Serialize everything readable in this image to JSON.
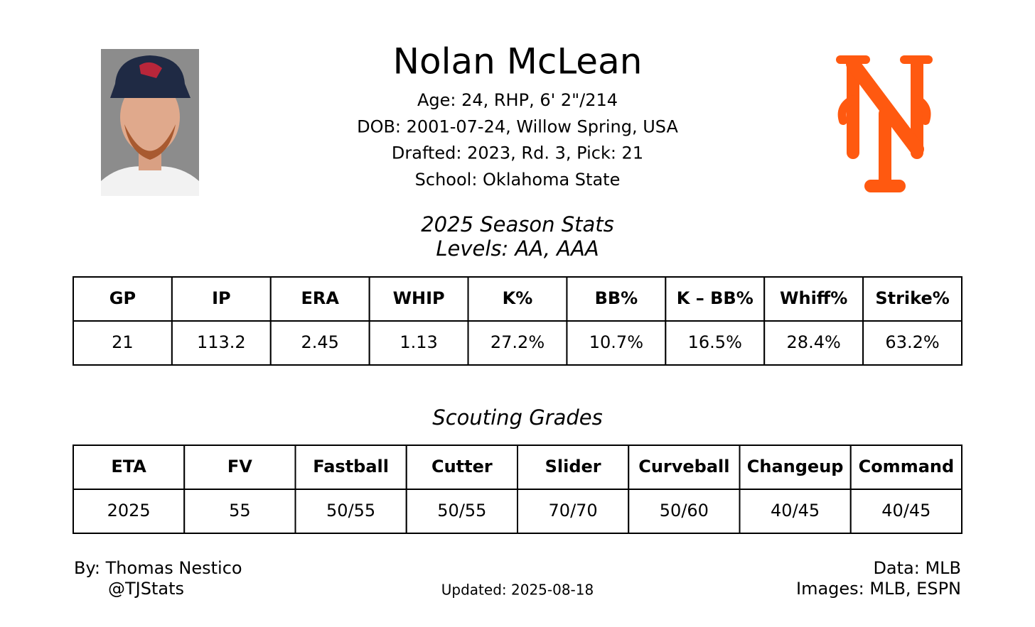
{
  "header": {
    "name": "Nolan McLean",
    "info": [
      "Age: 24, RHP, 6' 2\"/214",
      "DOB: 2001-07-24, Willow Spring, USA",
      "Drafted: 2023, Rd. 3, Pick: 21",
      "School: Oklahoma State"
    ]
  },
  "stats": {
    "title": "2025 Season Stats",
    "subtitle": "Levels: AA, AAA",
    "table": {
      "headers": [
        "GP",
        "IP",
        "ERA",
        "WHIP",
        "K%",
        "BB%",
        "K – BB%",
        "Whiff%",
        "Strike%"
      ],
      "rows": [
        [
          "21",
          "113.2",
          "2.45",
          "1.13",
          "27.2%",
          "10.7%",
          "16.5%",
          "28.4%",
          "63.2%"
        ]
      ]
    }
  },
  "grades": {
    "title": "Scouting Grades",
    "table": {
      "headers": [
        "ETA",
        "FV",
        "Fastball",
        "Cutter",
        "Slider",
        "Curveball",
        "Changeup",
        "Command"
      ],
      "rows": [
        [
          "2025",
          "55",
          "50/55",
          "50/55",
          "70/70",
          "50/60",
          "40/45",
          "40/45"
        ]
      ]
    }
  },
  "footer": {
    "by": "By: Thomas Nestico",
    "handle": "@TJStats",
    "updated": "Updated: 2025-08-18",
    "data": "Data: MLB",
    "images": "Images: MLB, ESPN"
  }
}
